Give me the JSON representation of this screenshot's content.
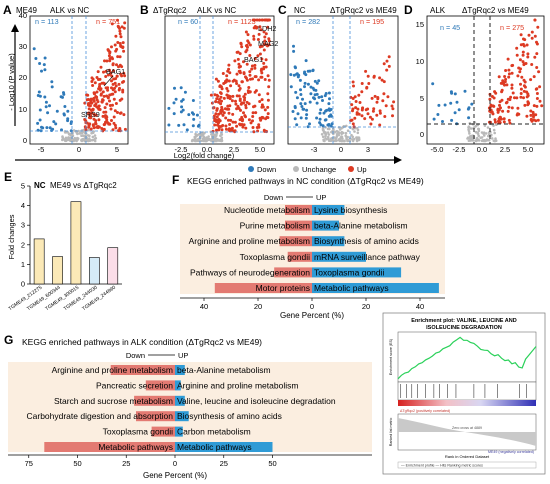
{
  "colors": {
    "down": "#2e79b8",
    "unchange": "#b9b9b9",
    "up": "#dd3a23",
    "kegg_bg": "#fbeee0",
    "bar_left": "#e37a72",
    "bar_right": "#2f9bd6",
    "fold_bar": "#fbe9b7"
  },
  "panels": {
    "A": {
      "letter": "A",
      "strain": "ME49",
      "title": "ALK vs NC",
      "n_down": "n = 113",
      "n_up": "n = 751",
      "ylabel": "- Log10 (P value)",
      "xlabel": "Log2(fold change)",
      "gene1": "BAG1",
      "gene2": "SRS9",
      "xticks": [
        "-5",
        "0",
        "5"
      ],
      "yticks": [
        "0",
        "10",
        "20",
        "30",
        "40"
      ]
    },
    "B": {
      "letter": "B",
      "strain": "ΔTgRqc2",
      "title": "ALK vs NC",
      "n_down": "n = 60",
      "n_up": "n = 1123",
      "gene1": "LDH2",
      "gene2": "MAG2",
      "gene3": "BAG1",
      "xticks": [
        "-2.5",
        "0.0",
        "2.5",
        "5.0"
      ]
    },
    "C": {
      "letter": "C",
      "strain": "NC",
      "title": "ΔTgRqc2 vs ME49",
      "n_down": "n = 282",
      "n_up": "n = 195",
      "xticks": [
        "-3",
        "0",
        "3"
      ]
    },
    "D": {
      "letter": "D",
      "strain": "ALK",
      "title": "ΔTgRqc2 vs ME49",
      "n_down": "n = 45",
      "n_up": "n = 275",
      "xticks": [
        "-5.0",
        "-2.5",
        "0.0",
        "2.5",
        "5.0"
      ],
      "yticks": [
        "0",
        "5",
        "10",
        "15"
      ]
    },
    "E": {
      "letter": "E",
      "title": "ME49 vs ΔTgRqc2",
      "subtitle": "NC",
      "ylabel": "Fold changes"
    },
    "F": {
      "letter": "F",
      "title": "KEGG enriched pathways in NC condition (ΔTgRqc2 vs ME49)",
      "down": "Down",
      "up": "UP",
      "xlabel": "Gene Percent (%)",
      "xticks": [
        "40",
        "20",
        "0",
        "20",
        "40"
      ]
    },
    "G": {
      "letter": "G",
      "title": "KEGG enriched pathways in ALK condition (ΔTgRqc2 vs ME49)",
      "down": "Down",
      "up": "UP",
      "xlabel": "Gene Percent (%)",
      "xticks": [
        "75",
        "50",
        "25",
        "0",
        "25",
        "50"
      ]
    },
    "H": {
      "letter": "H",
      "title_line1": "Enrichment plot: VALINE, LEUCINE AND",
      "title_line2": "ISOLEUCINE DEGRADATION",
      "left_label": "ΔTgRqc2 (positively correlated)",
      "zero_label": "Zero cross at 4889",
      "right_label": "ME49 (negatively correlated)",
      "xlabel": "Rank in Ordered Dataset",
      "ylabel1": "Enrichment score (ES)",
      "ylabel2": "Ranked list metric",
      "legend": "— Enrichment profile — Hits   Ranking metric scores"
    }
  },
  "legend": {
    "down": "Down",
    "unchange": "Unchange",
    "up": "Up"
  },
  "chart_data": [
    {
      "panel": "E",
      "type": "bar",
      "ylabel": "Fold changes",
      "ylim": [
        0,
        5
      ],
      "categories": [
        "TGME49_212275",
        "TGME49_600344",
        "TGME49_300015",
        "TGME49_244030",
        "TGME49_244890"
      ],
      "values": [
        2.3,
        1.4,
        4.2,
        1.35,
        1.85
      ],
      "bar_colors": [
        "#fbe9b7",
        "#fbe9b7",
        "#fbe9b7",
        "#d6ebf7",
        "#fbdde8"
      ]
    },
    {
      "panel": "F",
      "type": "bar",
      "orientation": "diverging",
      "title": "KEGG enriched pathways in NC condition (ΔTgRqc2 vs ME49)",
      "xlabel": "Gene Percent (%)",
      "rows": [
        {
          "down_label": "Nucleotide metabolism",
          "down": 10,
          "up_label": "Lysine biosynthesis",
          "up": 12
        },
        {
          "down_label": "Purine metabolism",
          "down": 10,
          "up_label": "beta-Alanine metabolism",
          "up": 10
        },
        {
          "down_label": "Arginine and proline metabolism",
          "down": 12,
          "up_label": "Biosynthesis of amino acids",
          "up": 12
        },
        {
          "down_label": "Toxoplasma gondii",
          "down": 9,
          "up_label": "mRNA surveillance pathway",
          "up": 20
        },
        {
          "down_label": "Pathways of neurodegeneration",
          "down": 14,
          "up_label": "Toxoplasma gondii",
          "up": 33
        },
        {
          "down_label": "Motor proteins",
          "down": 36,
          "up_label": "Metabolic pathways",
          "up": 47
        }
      ]
    },
    {
      "panel": "G",
      "type": "bar",
      "orientation": "diverging",
      "title": "KEGG enriched pathways in ALK condition (ΔTgRqc2 vs ME49)",
      "xlabel": "Gene Percent (%)",
      "rows": [
        {
          "down_label": "Arginine and proline metabolism",
          "down": 33,
          "up_label": "beta-Alanine metabolism",
          "up": 5
        },
        {
          "down_label": "Pancreatic secretion",
          "down": 15,
          "up_label": "Arginine and proline metabolism",
          "up": 3
        },
        {
          "down_label": "Starch and sucrose metabolism",
          "down": 21,
          "up_label": "Valine, leucine and isoleucine degradation",
          "up": 5
        },
        {
          "down_label": "Carbohydrate digestion and absorption",
          "down": 20,
          "up_label": "Biosynthesis of amino acids",
          "up": 7
        },
        {
          "down_label": "Toxoplasma gondii",
          "down": 12,
          "up_label": "Carbon metabolism",
          "up": 4
        },
        {
          "down_label": "Metabolic pathways",
          "down": 67,
          "up_label": "Metabolic pathways",
          "up": 50
        }
      ]
    }
  ]
}
